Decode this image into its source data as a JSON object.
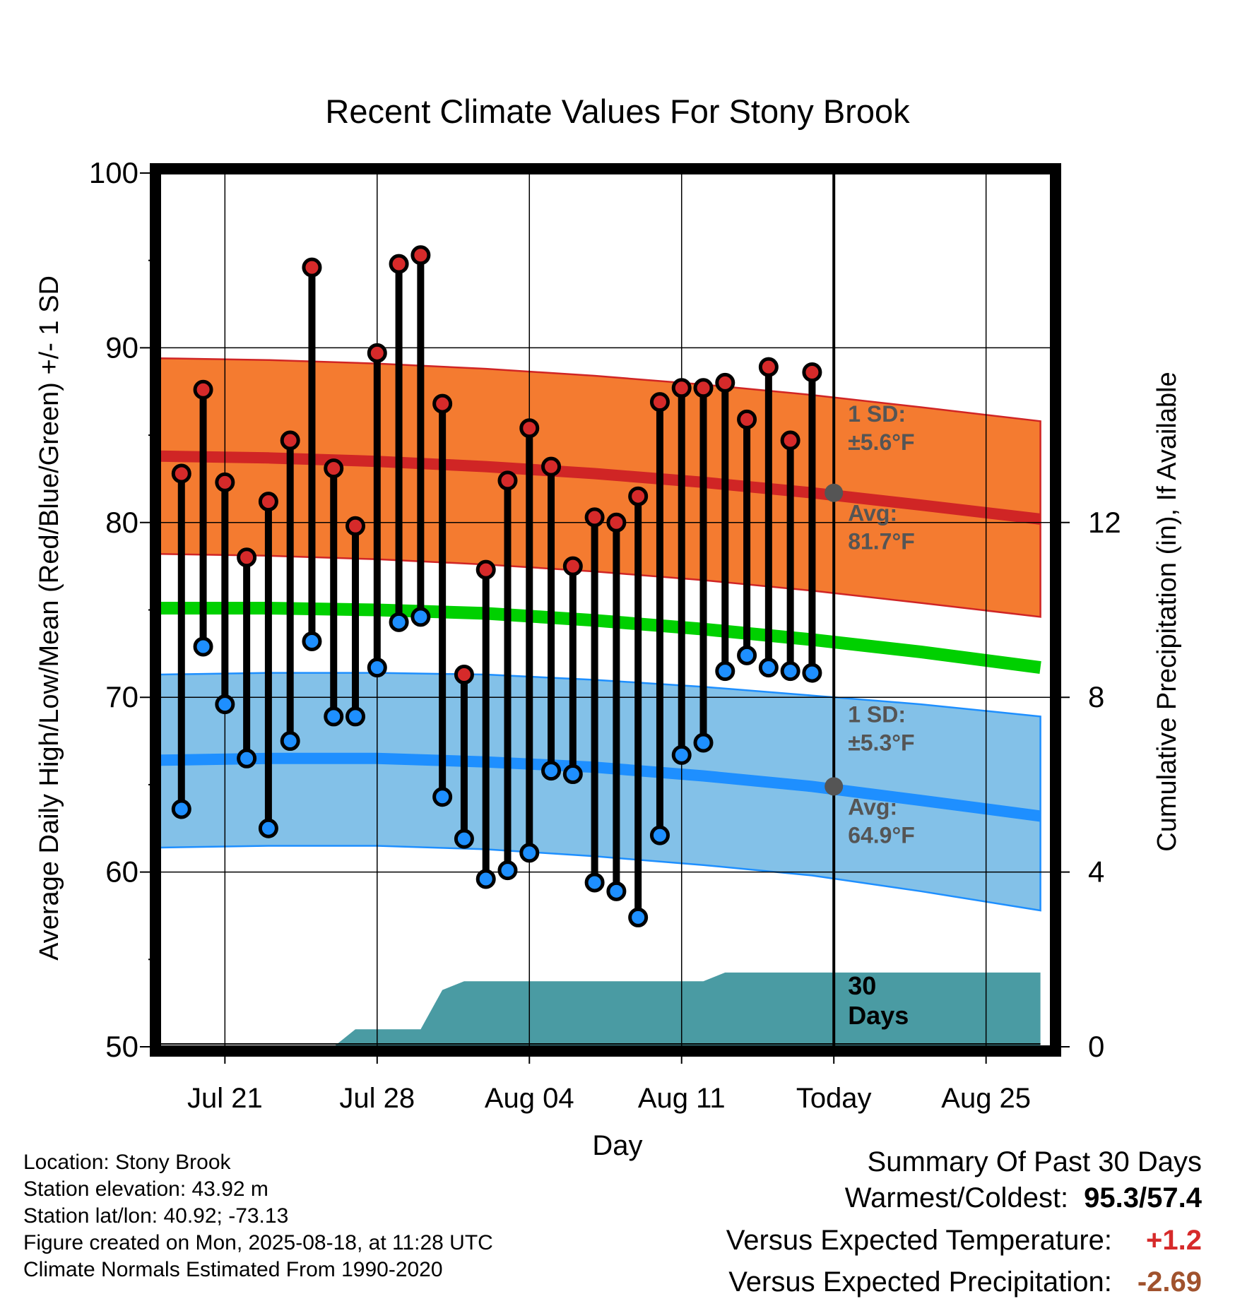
{
  "chart_data": {
    "type": "line",
    "title": "Recent Climate Values For Stony Brook",
    "xlabel": "Day",
    "ylabel": "Average Daily High/Low/Mean (Red/Blue/Green) +/- 1 SD",
    "y2label": "Cumulative Precipitation (in), If Available",
    "ylim": [
      50,
      100
    ],
    "y_ticks": [
      "50",
      "60",
      "70",
      "80",
      "90",
      "100"
    ],
    "y2lim": [
      0,
      20
    ],
    "y2_ticks": [
      "0",
      "4",
      "8",
      "12"
    ],
    "x_range_days": [
      0,
      41
    ],
    "x_ticks": [
      {
        "day": 3,
        "label": "Jul 21"
      },
      {
        "day": 10,
        "label": "Jul 28"
      },
      {
        "day": 17,
        "label": "Aug 04"
      },
      {
        "day": 24,
        "label": "Aug 11"
      },
      {
        "day": 31,
        "label": "Today"
      },
      {
        "day": 38,
        "label": "Aug 25"
      }
    ],
    "first_day": "Jul 18",
    "grid": true,
    "colors": {
      "high_band": "#f47b30",
      "high_line": "#d02525",
      "low_band": "#83c1e8",
      "low_line": "#1e8fff",
      "mean_line": "#00d000",
      "high_marker": "#d62a2a",
      "low_marker": "#1e8fff",
      "precip": "#4a9ba3",
      "avg_marker": "#555555",
      "annotation_text": "#555555"
    },
    "normals": {
      "days": [
        0,
        5,
        10,
        15,
        20,
        25,
        30,
        35,
        40.5
      ],
      "high_avg": [
        83.8,
        83.7,
        83.5,
        83.2,
        82.8,
        82.3,
        81.7,
        81.0,
        80.2
      ],
      "high_upper": [
        89.4,
        89.3,
        89.1,
        88.8,
        88.4,
        87.9,
        87.3,
        86.6,
        85.8
      ],
      "high_lower": [
        78.2,
        78.1,
        77.9,
        77.6,
        77.2,
        76.7,
        76.1,
        75.4,
        74.6
      ],
      "low_avg": [
        66.4,
        66.5,
        66.5,
        66.3,
        66.0,
        65.5,
        64.9,
        64.1,
        63.2
      ],
      "low_upper": [
        71.3,
        71.4,
        71.4,
        71.3,
        71.0,
        70.6,
        70.1,
        69.6,
        68.9
      ],
      "low_lower": [
        61.4,
        61.5,
        61.5,
        61.3,
        60.9,
        60.4,
        59.8,
        58.9,
        57.8
      ],
      "mean": [
        75.1,
        75.1,
        75.0,
        74.8,
        74.4,
        73.9,
        73.3,
        72.6,
        71.7
      ]
    },
    "series": [
      {
        "name": "High",
        "days": [
          1,
          2,
          3,
          4,
          5,
          6,
          7,
          8,
          9,
          10,
          11,
          12,
          13,
          14,
          15,
          16,
          17,
          18,
          19,
          20,
          21,
          22,
          23,
          24,
          25,
          26,
          27,
          28,
          29,
          30
        ],
        "values": [
          82.8,
          87.6,
          82.3,
          78.0,
          81.2,
          84.7,
          94.6,
          83.1,
          79.8,
          89.7,
          94.8,
          95.3,
          86.8,
          71.3,
          77.3,
          82.4,
          85.4,
          83.2,
          77.5,
          80.3,
          80.0,
          81.5,
          86.9,
          87.7,
          87.7,
          88.0,
          85.9,
          88.9,
          84.7,
          88.6
        ]
      },
      {
        "name": "Low",
        "days": [
          1,
          2,
          3,
          4,
          5,
          6,
          7,
          8,
          9,
          10,
          11,
          12,
          13,
          14,
          15,
          16,
          17,
          18,
          19,
          20,
          21,
          22,
          23,
          24,
          25,
          26,
          27,
          28,
          29,
          30
        ],
        "values": [
          63.6,
          72.9,
          69.6,
          66.5,
          62.5,
          67.5,
          73.2,
          68.9,
          68.9,
          71.7,
          74.3,
          74.6,
          64.3,
          61.9,
          59.6,
          60.1,
          61.1,
          65.8,
          65.6,
          59.4,
          58.9,
          57.4,
          62.1,
          66.7,
          67.4,
          71.5,
          72.4,
          71.7,
          71.5,
          71.4
        ]
      }
    ],
    "precip_cumulative": {
      "days": [
        0,
        8,
        9,
        10,
        12,
        13,
        14,
        25,
        26,
        30,
        40.5
      ],
      "values": [
        0,
        0,
        0.4,
        0.4,
        0.4,
        1.3,
        1.5,
        1.5,
        1.7,
        1.7,
        1.7
      ]
    },
    "today_day": 31,
    "annotations": [
      {
        "kind": "high",
        "sd": "1 SD:",
        "sd_value": "±5.6°F",
        "avg": "Avg:",
        "avg_value": "81.7°F",
        "avg_y": 81.7
      },
      {
        "kind": "low",
        "sd": "1 SD:",
        "sd_value": "±5.3°F",
        "avg": "Avg:",
        "avg_value": "64.9°F",
        "avg_y": 64.9
      }
    ],
    "days_label": [
      "30",
      "Days"
    ]
  },
  "station": {
    "location": "Location: Stony Brook",
    "elevation": "Station elevation: 43.92 m",
    "latlon": "Station lat/lon: 40.92; -73.13",
    "created": "Figure created on Mon, 2025-08-18, at 11:28 UTC",
    "normals": "Climate Normals Estimated From 1990-2020"
  },
  "summary": {
    "heading": "Summary Of Past 30 Days",
    "warm_cold_label": "Warmest/Coldest:",
    "warm_cold_value": "95.3/57.4",
    "temp_label": "Versus Expected Temperature:",
    "temp_value": "+1.2",
    "temp_color": "#d62a2a",
    "precip_label": "Versus Expected Precipitation:",
    "precip_value": "-2.69",
    "precip_color": "#a0522d"
  }
}
